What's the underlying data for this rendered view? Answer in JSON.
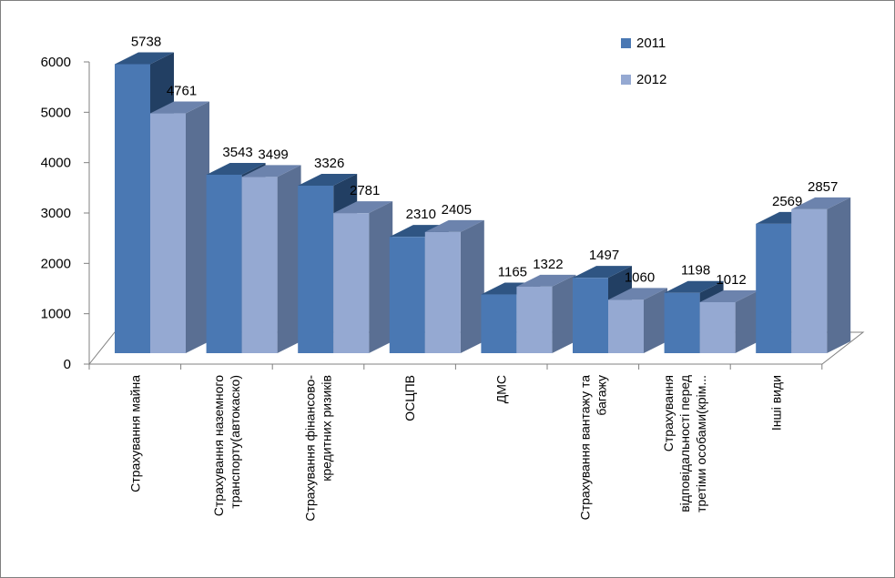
{
  "chart_data": {
    "type": "bar",
    "categories": [
      [
        "Страхування майна"
      ],
      [
        "Страхування наземного",
        "транспорту(автокаско)"
      ],
      [
        "Страхування фінансово-",
        "кредитних ризиків"
      ],
      [
        "ОСЦПВ"
      ],
      [
        "ДМС"
      ],
      [
        "Страхування вантажу та",
        "багажу"
      ],
      [
        "Страхування",
        "відповідальності перед",
        "третіми особами(крім..."
      ],
      [
        "Інші види"
      ]
    ],
    "series": [
      {
        "name": "2011",
        "values": [
          5738,
          3543,
          3326,
          2310,
          1165,
          1497,
          1198,
          2569
        ]
      },
      {
        "name": "2012",
        "values": [
          4761,
          3499,
          2781,
          2405,
          1322,
          1060,
          1012,
          2857
        ]
      }
    ],
    "y_ticks": [
      "0",
      "1000",
      "2000",
      "3000",
      "4000",
      "5000",
      "6000"
    ],
    "ylim": [
      0,
      6000
    ],
    "legend_position": "top-right",
    "colors": {
      "s2011_front": "#4a78b3",
      "s2011_top": "#2f5583",
      "s2011_side": "#223f63",
      "s2012_front": "#95a9d2",
      "s2012_top": "#6c83ad",
      "s2012_side": "#5a6f93",
      "axis": "#808080"
    }
  }
}
